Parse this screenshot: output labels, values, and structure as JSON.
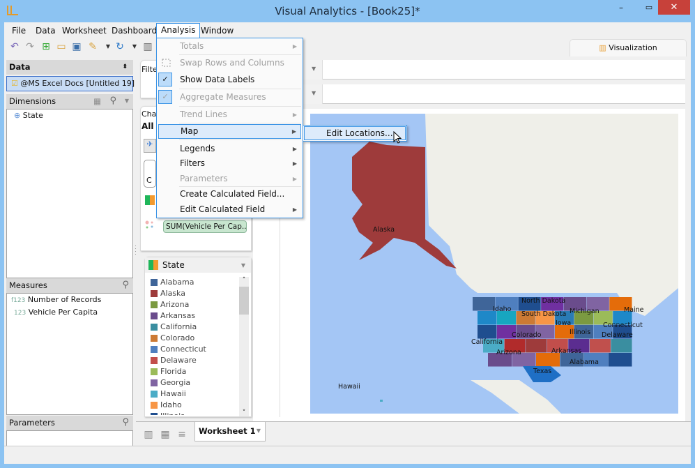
{
  "window": {
    "title": "Visual Analytics - [Book25]*"
  },
  "menubar": {
    "items": [
      "File",
      "Data",
      "Worksheet",
      "Dashboard",
      "Analysis",
      "Window"
    ],
    "active": "Analysis"
  },
  "analysis_menu": {
    "items": [
      {
        "label": "Totals",
        "enabled": false,
        "submenu": true,
        "checked": false
      },
      {
        "label": "Swap Rows and Columns",
        "enabled": false,
        "submenu": false,
        "checked": false
      },
      {
        "label": "Show Data Labels",
        "enabled": true,
        "submenu": false,
        "checked": true
      },
      {
        "label": "Aggregate Measures",
        "enabled": false,
        "submenu": false,
        "checked": true
      },
      {
        "label": "Trend Lines",
        "enabled": false,
        "submenu": true,
        "checked": false
      },
      {
        "label": "Map",
        "enabled": true,
        "submenu": true,
        "checked": false,
        "highlighted": true
      },
      {
        "label": "Legends",
        "enabled": true,
        "submenu": true,
        "checked": false
      },
      {
        "label": "Filters",
        "enabled": true,
        "submenu": true,
        "checked": false
      },
      {
        "label": "Parameters",
        "enabled": false,
        "submenu": true,
        "checked": false
      },
      {
        "label": "Create Calculated Field...",
        "enabled": true,
        "submenu": false,
        "checked": false
      },
      {
        "label": "Edit Calculated Field",
        "enabled": true,
        "submenu": true,
        "checked": false
      }
    ]
  },
  "map_submenu": {
    "items": [
      "Edit Locations..."
    ]
  },
  "data_panel": {
    "title": "Data",
    "datasource": "@MS Excel Docs [Untitled 19]",
    "dimensions_title": "Dimensions",
    "dimensions": [
      "State"
    ],
    "measures_title": "Measures",
    "measures": [
      {
        "prefix": "f123",
        "label": "Number of Records"
      },
      {
        "prefix": "123",
        "label": "Vehicle Per Capita"
      }
    ],
    "parameters_title": "Parameters"
  },
  "middle": {
    "filters_label": "Filte",
    "chart_label": "Cha",
    "all_label": "All",
    "card_letter": "C",
    "pill": "SUM(Vehicle Per Cap..."
  },
  "legend": {
    "title": "State",
    "items": [
      {
        "label": "Alabama",
        "color": "#3f6599"
      },
      {
        "label": "Alaska",
        "color": "#9e3b3b"
      },
      {
        "label": "Arizona",
        "color": "#7b9a41"
      },
      {
        "label": "Arkansas",
        "color": "#6a4c8c"
      },
      {
        "label": "California",
        "color": "#3a8ea0"
      },
      {
        "label": "Colorado",
        "color": "#cc7a34"
      },
      {
        "label": "Connecticut",
        "color": "#4f7fbf"
      },
      {
        "label": "Delaware",
        "color": "#c24e4b"
      },
      {
        "label": "Florida",
        "color": "#9bbb59"
      },
      {
        "label": "Georgia",
        "color": "#8064a2"
      },
      {
        "label": "Hawaii",
        "color": "#4bacc6"
      },
      {
        "label": "Idaho",
        "color": "#f79646"
      },
      {
        "label": "Illinois",
        "color": "#1f4e8f"
      }
    ]
  },
  "viz_tab": {
    "label": "Visualization"
  },
  "sheet_tabs": {
    "active": "Worksheet 1"
  },
  "map": {
    "water": "#a4c6f5",
    "land": "#efefe9",
    "labels": [
      "Alaska",
      "Idaho",
      "North Dakota",
      "South Dakota",
      "Michigan",
      "Iowa",
      "Illinois",
      "Maine",
      "Connecticut",
      "Delaware",
      "Colorado",
      "California",
      "Arizona",
      "Arkansas",
      "Texas",
      "Alabama",
      "Hawaii"
    ]
  }
}
